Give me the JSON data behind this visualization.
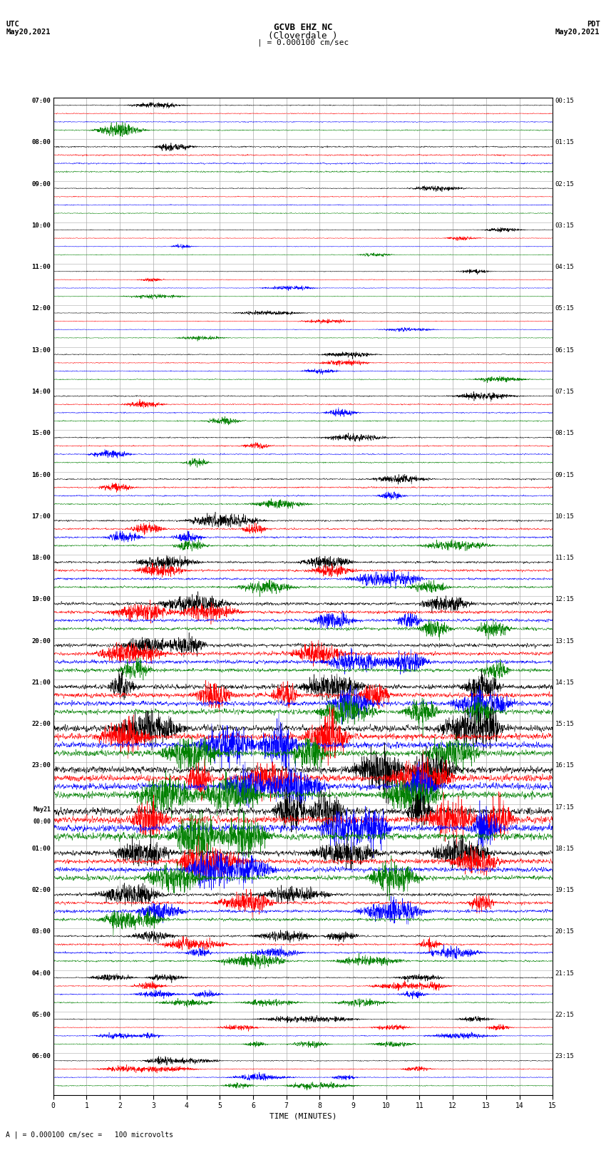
{
  "title_line1": "GCVB EHZ NC",
  "title_line2": "(Cloverdale )",
  "scale_text": "| = 0.000100 cm/sec",
  "left_header1": "UTC",
  "left_header2": "May20,2021",
  "right_header1": "PDT",
  "right_header2": "May20,2021",
  "bottom_label": "TIME (MINUTES)",
  "footnote": "A | = 0.000100 cm/sec =   100 microvolts",
  "utc_labels": [
    "07:00",
    "08:00",
    "09:00",
    "10:00",
    "11:00",
    "12:00",
    "13:00",
    "14:00",
    "15:00",
    "16:00",
    "17:00",
    "18:00",
    "19:00",
    "20:00",
    "21:00",
    "22:00",
    "23:00",
    "May21\n00:00",
    "01:00",
    "02:00",
    "03:00",
    "04:00",
    "05:00",
    "06:00"
  ],
  "pdt_labels": [
    "00:15",
    "01:15",
    "02:15",
    "03:15",
    "04:15",
    "05:15",
    "06:15",
    "07:15",
    "08:15",
    "09:15",
    "10:15",
    "11:15",
    "12:15",
    "13:15",
    "14:15",
    "15:15",
    "16:15",
    "17:15",
    "18:15",
    "19:15",
    "20:15",
    "21:15",
    "22:15",
    "23:15"
  ],
  "trace_colors": [
    "black",
    "red",
    "blue",
    "green"
  ],
  "n_rows": 24,
  "traces_per_row": 4,
  "minutes": 15,
  "background_color": "white",
  "grid_color": "#aaaaaa",
  "fig_width": 8.5,
  "fig_height": 16.13,
  "amplitude_profile": [
    0.008,
    0.012,
    0.008,
    0.006,
    0.006,
    0.006,
    0.008,
    0.01,
    0.01,
    0.012,
    0.015,
    0.018,
    0.025,
    0.03,
    0.04,
    0.05,
    0.055,
    0.06,
    0.04,
    0.025,
    0.015,
    0.01,
    0.008,
    0.008
  ]
}
